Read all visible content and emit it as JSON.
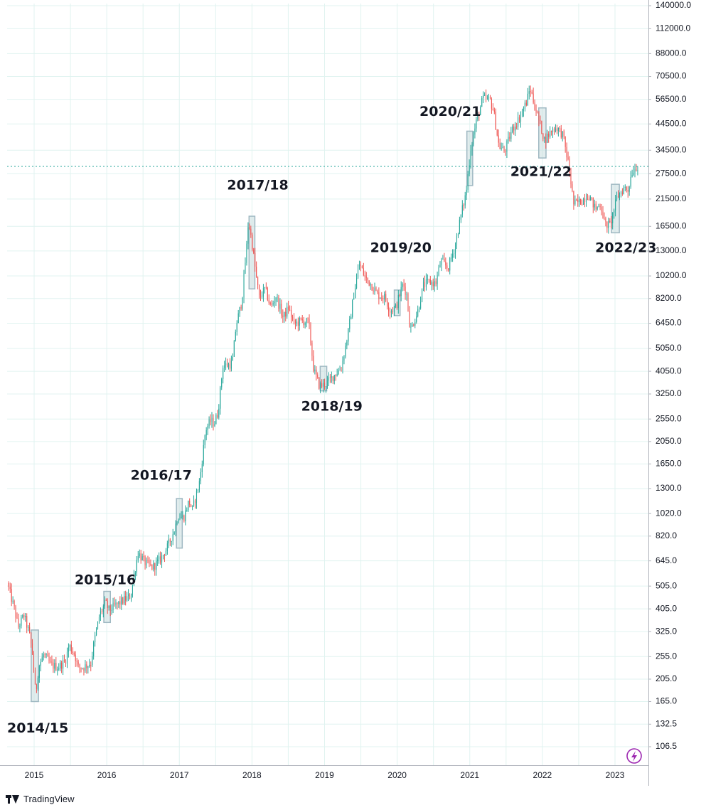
{
  "chart_data": {
    "type": "candlestick",
    "title": "",
    "xlabel": "",
    "ylabel": "",
    "yscale": "log",
    "ylim": [
      95,
      145000
    ],
    "xlim": [
      2014.65,
      2023.45
    ],
    "y_ticks": [
      140000,
      112000,
      88000,
      70500,
      56500,
      44500,
      34500,
      27500,
      21500,
      16500,
      13000,
      10200,
      8200,
      6450,
      5050,
      4050,
      3250,
      2550,
      2050,
      1650,
      1300,
      1020,
      820,
      645,
      505,
      405,
      325,
      255,
      205,
      165,
      132.5,
      106.5
    ],
    "y_tick_labels": [
      "140000.0",
      "112000.0",
      "88000.0",
      "70500.0",
      "56500.0",
      "44500.0",
      "34500.0",
      "27500.0",
      "21500.0",
      "16500.0",
      "13000.0",
      "10200.0",
      "8200.0",
      "6450.0",
      "5050.0",
      "4050.0",
      "3250.0",
      "2550.0",
      "2050.0",
      "1650.0",
      "1300.0",
      "1020.0",
      "820.0",
      "645.0",
      "505.0",
      "405.0",
      "325.0",
      "255.0",
      "205.0",
      "165.0",
      "132.5",
      "106.5"
    ],
    "x_ticks": [
      2015,
      2016,
      2017,
      2018,
      2019,
      2020,
      2021,
      2022,
      2023
    ],
    "x_tick_labels": [
      "2015",
      "2016",
      "2017",
      "2018",
      "2019",
      "2020",
      "2021",
      "2022",
      "2023"
    ],
    "grid": true,
    "current_price_line": 29500,
    "colors": {
      "up": "#26a69a",
      "down": "#ef5350",
      "grid": "#e0f3f0",
      "highlight_fill": "#c8dcdf",
      "highlight_stroke": "#9fb8c2",
      "price_line": "#26a69a",
      "axis": "#b2b5be"
    },
    "price_path": [
      [
        2014.65,
        520
      ],
      [
        2014.75,
        400
      ],
      [
        2014.8,
        340
      ],
      [
        2014.88,
        380
      ],
      [
        2014.95,
        320
      ],
      [
        2015.0,
        260
      ],
      [
        2015.04,
        175
      ],
      [
        2015.08,
        230
      ],
      [
        2015.15,
        260
      ],
      [
        2015.25,
        235
      ],
      [
        2015.35,
        230
      ],
      [
        2015.45,
        245
      ],
      [
        2015.5,
        285
      ],
      [
        2015.58,
        260
      ],
      [
        2015.62,
        230
      ],
      [
        2015.7,
        230
      ],
      [
        2015.8,
        240
      ],
      [
        2015.85,
        300
      ],
      [
        2015.92,
        380
      ],
      [
        2016.0,
        430
      ],
      [
        2016.05,
        400
      ],
      [
        2016.15,
        420
      ],
      [
        2016.25,
        440
      ],
      [
        2016.35,
        460
      ],
      [
        2016.45,
        700
      ],
      [
        2016.55,
        630
      ],
      [
        2016.65,
        605
      ],
      [
        2016.75,
        650
      ],
      [
        2016.85,
        730
      ],
      [
        2016.95,
        870
      ],
      [
        2017.0,
        1000
      ],
      [
        2017.08,
        980
      ],
      [
        2017.15,
        1150
      ],
      [
        2017.2,
        1060
      ],
      [
        2017.3,
        1400
      ],
      [
        2017.38,
        2300
      ],
      [
        2017.45,
        2500
      ],
      [
        2017.5,
        2450
      ],
      [
        2017.55,
        2700
      ],
      [
        2017.62,
        4300
      ],
      [
        2017.7,
        4300
      ],
      [
        2017.75,
        4400
      ],
      [
        2017.8,
        6300
      ],
      [
        2017.88,
        8000
      ],
      [
        2017.95,
        14000
      ],
      [
        2017.97,
        17500
      ],
      [
        2018.02,
        14000
      ],
      [
        2018.08,
        10000
      ],
      [
        2018.12,
        8200
      ],
      [
        2018.2,
        9000
      ],
      [
        2018.28,
        7500
      ],
      [
        2018.35,
        8400
      ],
      [
        2018.45,
        6800
      ],
      [
        2018.52,
        7500
      ],
      [
        2018.6,
        6400
      ],
      [
        2018.7,
        6600
      ],
      [
        2018.8,
        6500
      ],
      [
        2018.87,
        4100
      ],
      [
        2018.95,
        3500
      ],
      [
        2019.05,
        3600
      ],
      [
        2019.15,
        3900
      ],
      [
        2019.25,
        4200
      ],
      [
        2019.35,
        6000
      ],
      [
        2019.42,
        8500
      ],
      [
        2019.5,
        11500
      ],
      [
        2019.58,
        10000
      ],
      [
        2019.65,
        9500
      ],
      [
        2019.75,
        8500
      ],
      [
        2019.85,
        8300
      ],
      [
        2019.92,
        7300
      ],
      [
        2020.0,
        7500
      ],
      [
        2020.1,
        9500
      ],
      [
        2020.15,
        8500
      ],
      [
        2020.2,
        6000
      ],
      [
        2020.3,
        7200
      ],
      [
        2020.38,
        9300
      ],
      [
        2020.45,
        9600
      ],
      [
        2020.55,
        9500
      ],
      [
        2020.62,
        11800
      ],
      [
        2020.72,
        11000
      ],
      [
        2020.82,
        13800
      ],
      [
        2020.9,
        18500
      ],
      [
        2020.97,
        23000
      ],
      [
        2021.03,
        35000
      ],
      [
        2021.12,
        47000
      ],
      [
        2021.2,
        57000
      ],
      [
        2021.3,
        56000
      ],
      [
        2021.35,
        50000
      ],
      [
        2021.42,
        36000
      ],
      [
        2021.5,
        34000
      ],
      [
        2021.6,
        42000
      ],
      [
        2021.7,
        47000
      ],
      [
        2021.8,
        55000
      ],
      [
        2021.85,
        63000
      ],
      [
        2021.92,
        52000
      ],
      [
        2022.0,
        43000
      ],
      [
        2022.05,
        38000
      ],
      [
        2022.15,
        42000
      ],
      [
        2022.22,
        43000
      ],
      [
        2022.3,
        40000
      ],
      [
        2022.38,
        30000
      ],
      [
        2022.45,
        20500
      ],
      [
        2022.55,
        21000
      ],
      [
        2022.65,
        22500
      ],
      [
        2022.75,
        19500
      ],
      [
        2022.82,
        20500
      ],
      [
        2022.88,
        16800
      ],
      [
        2022.95,
        16700
      ],
      [
        2023.05,
        22000
      ],
      [
        2023.15,
        24000
      ],
      [
        2023.2,
        23500
      ],
      [
        2023.25,
        28000
      ],
      [
        2023.32,
        29500
      ]
    ],
    "highlight_boxes": [
      {
        "x0": 2014.96,
        "x1": 2015.06,
        "y_low": 165,
        "y_high": 330
      },
      {
        "x0": 2015.96,
        "x1": 2016.05,
        "y_low": 355,
        "y_high": 480
      },
      {
        "x0": 2016.96,
        "x1": 2017.04,
        "y_low": 730,
        "y_high": 1180
      },
      {
        "x0": 2017.96,
        "x1": 2018.04,
        "y_low": 9000,
        "y_high": 18200
      },
      {
        "x0": 2018.94,
        "x1": 2019.03,
        "y_low": 3350,
        "y_high": 4250
      },
      {
        "x0": 2019.96,
        "x1": 2020.04,
        "y_low": 6950,
        "y_high": 8900
      },
      {
        "x0": 2020.96,
        "x1": 2021.04,
        "y_low": 24500,
        "y_high": 41500
      },
      {
        "x0": 2021.95,
        "x1": 2022.05,
        "y_low": 32000,
        "y_high": 52000
      },
      {
        "x0": 2022.95,
        "x1": 2023.06,
        "y_low": 15500,
        "y_high": 24800
      }
    ],
    "annotations": [
      {
        "text": "2014/15",
        "x": 2015.05,
        "y": 127
      },
      {
        "text": "2015/16",
        "x": 2015.98,
        "y": 535
      },
      {
        "text": "2016/17",
        "x": 2016.75,
        "y": 1470
      },
      {
        "text": "2017/18",
        "x": 2018.08,
        "y": 24500
      },
      {
        "text": "2018/19",
        "x": 2019.1,
        "y": 2870
      },
      {
        "text": "2019/20",
        "x": 2020.05,
        "y": 13350
      },
      {
        "text": "2020/21",
        "x": 2020.73,
        "y": 50000
      },
      {
        "text": "2021/22",
        "x": 2021.98,
        "y": 27900
      },
      {
        "text": "2022/23",
        "x": 2023.15,
        "y": 13350
      }
    ]
  },
  "branding": {
    "name": "TradingView"
  },
  "icons": {
    "flash": "lightning-bolt-icon",
    "brand": "tradingview-logo-icon"
  }
}
